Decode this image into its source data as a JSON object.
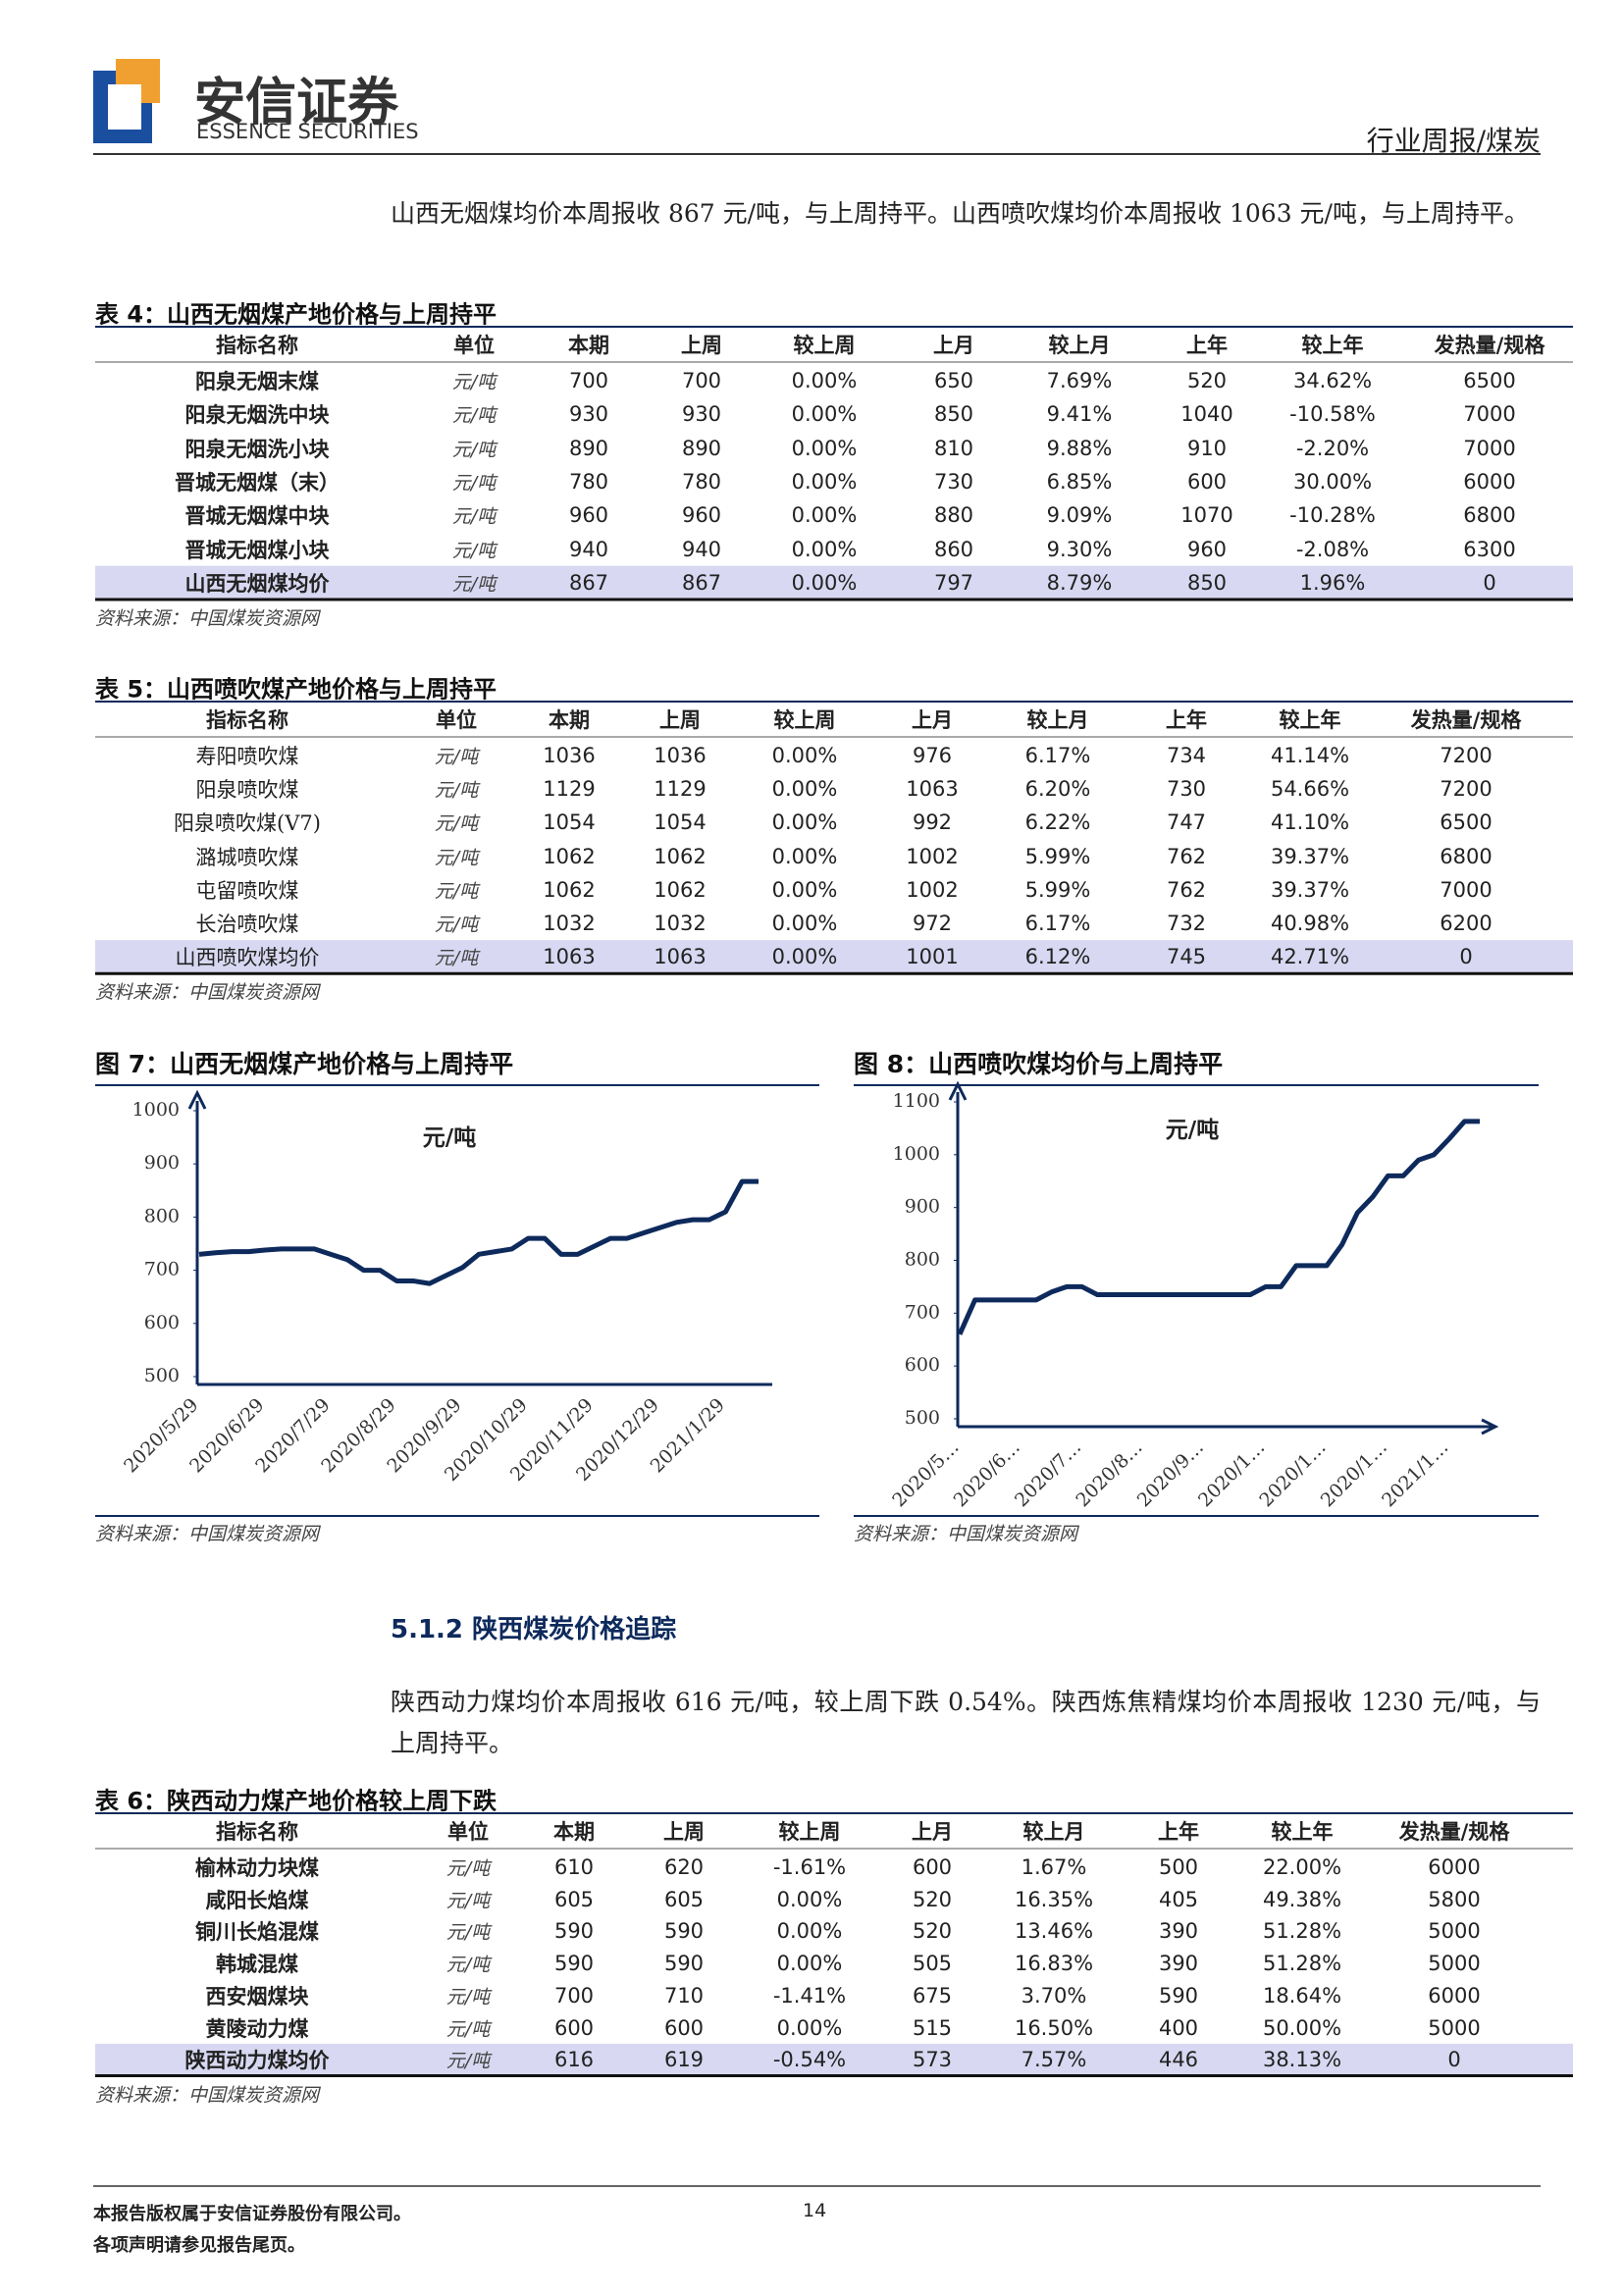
{
  "header": {
    "company": "安信证券",
    "company_en": "ESSENCE SECURITIES",
    "report_type": "行业周报/煤炭"
  },
  "paragraphs": [
    "山西无烟煤均价本周报收 867 元/吨，与上周持平。山西喷吹煤均价本周报收 1063 元/吨，与上周持平。",
    "陕西动力煤均价本周报收 616 元/吨，较上周下跌 0.54%。陕西炼焦精煤均价本周报收 1230 元/吨，与上周持平。"
  ],
  "section_heading": "5.1.2 陕西煤炭价格追踪",
  "tables": [
    {
      "title": "表 4：山西无烟煤产地价格与上周持平",
      "columns": [
        "指标名称",
        "单位",
        "本期",
        "上周",
        "较上周",
        "上月",
        "较上月",
        "上年",
        "较上年",
        "发热量/规格"
      ],
      "rows": [
        [
          "阳泉无烟末煤",
          "元/吨",
          "700",
          "700",
          "0.00%",
          "650",
          "7.69%",
          "520",
          "34.62%",
          "6500"
        ],
        [
          "阳泉无烟洗中块",
          "元/吨",
          "930",
          "930",
          "0.00%",
          "850",
          "9.41%",
          "1040",
          "-10.58%",
          "7000"
        ],
        [
          "阳泉无烟洗小块",
          "元/吨",
          "890",
          "890",
          "0.00%",
          "810",
          "9.88%",
          "910",
          "-2.20%",
          "7000"
        ],
        [
          "晋城无烟煤（末）",
          "元/吨",
          "780",
          "780",
          "0.00%",
          "730",
          "6.85%",
          "600",
          "30.00%",
          "6000"
        ],
        [
          "晋城无烟煤中块",
          "元/吨",
          "960",
          "960",
          "0.00%",
          "880",
          "9.09%",
          "1070",
          "-10.28%",
          "6800"
        ],
        [
          "晋城无烟煤小块",
          "元/吨",
          "940",
          "940",
          "0.00%",
          "860",
          "9.30%",
          "960",
          "-2.08%",
          "6300"
        ],
        [
          "山西无烟煤均价",
          "元/吨",
          "867",
          "867",
          "0.00%",
          "797",
          "8.79%",
          "850",
          "1.96%",
          "0"
        ]
      ],
      "source": "资料来源：中国煤炭资源网"
    },
    {
      "title": "表 5：山西喷吹煤产地价格与上周持平",
      "columns": [
        "指标名称",
        "单位",
        "本期",
        "上周",
        "较上周",
        "上月",
        "较上月",
        "上年",
        "较上年",
        "发热量/规格"
      ],
      "rows": [
        [
          "寿阳喷吹煤",
          "元/吨",
          "1036",
          "1036",
          "0.00%",
          "976",
          "6.17%",
          "734",
          "41.14%",
          "7200"
        ],
        [
          "阳泉喷吹煤",
          "元/吨",
          "1129",
          "1129",
          "0.00%",
          "1063",
          "6.20%",
          "730",
          "54.66%",
          "7200"
        ],
        [
          "阳泉喷吹煤(V7)",
          "元/吨",
          "1054",
          "1054",
          "0.00%",
          "992",
          "6.22%",
          "747",
          "41.10%",
          "6500"
        ],
        [
          "潞城喷吹煤",
          "元/吨",
          "1062",
          "1062",
          "0.00%",
          "1002",
          "5.99%",
          "762",
          "39.37%",
          "6800"
        ],
        [
          "屯留喷吹煤",
          "元/吨",
          "1062",
          "1062",
          "0.00%",
          "1002",
          "5.99%",
          "762",
          "39.37%",
          "7000"
        ],
        [
          "长治喷吹煤",
          "元/吨",
          "1032",
          "1032",
          "0.00%",
          "972",
          "6.17%",
          "732",
          "40.98%",
          "6200"
        ],
        [
          "山西喷吹煤均价",
          "元/吨",
          "1063",
          "1063",
          "0.00%",
          "1001",
          "6.12%",
          "745",
          "42.71%",
          "0"
        ]
      ],
      "source": "资料来源：中国煤炭资源网"
    },
    {
      "title": "表 6：陕西动力煤产地价格较上周下跌",
      "columns": [
        "指标名称",
        "单位",
        "本期",
        "上周",
        "较上周",
        "上月",
        "较上月",
        "上年",
        "较上年",
        "发热量/规格"
      ],
      "rows": [
        [
          "榆林动力块煤",
          "元/吨",
          "610",
          "620",
          "-1.61%",
          "600",
          "1.67%",
          "500",
          "22.00%",
          "6000"
        ],
        [
          "咸阳长焰煤",
          "元/吨",
          "605",
          "605",
          "0.00%",
          "520",
          "16.35%",
          "405",
          "49.38%",
          "5800"
        ],
        [
          "铜川长焰混煤",
          "元/吨",
          "590",
          "590",
          "0.00%",
          "520",
          "13.46%",
          "390",
          "51.28%",
          "5000"
        ],
        [
          "韩城混煤",
          "元/吨",
          "590",
          "590",
          "0.00%",
          "505",
          "16.83%",
          "390",
          "51.28%",
          "5000"
        ],
        [
          "西安烟煤块",
          "元/吨",
          "700",
          "710",
          "-1.41%",
          "675",
          "3.70%",
          "590",
          "18.64%",
          "6000"
        ],
        [
          "黄陵动力煤",
          "元/吨",
          "600",
          "600",
          "0.00%",
          "515",
          "16.50%",
          "400",
          "50.00%",
          "5000"
        ],
        [
          "陕西动力煤均价",
          "元/吨",
          "616",
          "619",
          "-0.54%",
          "573",
          "7.57%",
          "446",
          "38.13%",
          "0"
        ]
      ],
      "source": "资料来源：中国煤炭资源网"
    }
  ],
  "charts": [
    {
      "type": "line",
      "title": "图 7：山西无烟煤产地价格与上周持平",
      "unit_label": "元/吨",
      "color": "#0e2a5c",
      "categories": [
        "2020/5/29",
        null,
        null,
        null,
        "2020/6/29",
        null,
        null,
        null,
        "2020/7/29",
        null,
        null,
        null,
        "2020/8/29",
        null,
        null,
        null,
        "2020/9/29",
        null,
        null,
        null,
        "2020/10/29",
        null,
        null,
        null,
        "2020/11/29",
        null,
        null,
        null,
        "2020/12/29",
        null,
        null,
        null,
        "2021/1/29",
        null,
        null
      ],
      "values": [
        730,
        733,
        735,
        735,
        738,
        740,
        740,
        740,
        730,
        720,
        700,
        700,
        680,
        680,
        675,
        690,
        705,
        730,
        735,
        740,
        760,
        760,
        730,
        730,
        745,
        760,
        760,
        770,
        780,
        790,
        795,
        795,
        810,
        867,
        867
      ],
      "ylim": [
        500,
        1000
      ],
      "yticks": [
        500,
        600,
        700,
        800,
        900,
        1000
      ],
      "source": "资料来源：中国煤炭资源网"
    },
    {
      "type": "line",
      "title": "图 8：山西喷吹煤均价与上周持平",
      "unit_label": "元/吨",
      "color": "#0e2a5c",
      "categories": [
        "2020/5…",
        null,
        null,
        null,
        "2020/6…",
        null,
        null,
        null,
        "2020/7…",
        null,
        null,
        null,
        "2020/8…",
        null,
        null,
        null,
        "2020/9…",
        null,
        null,
        null,
        "2020/1…",
        null,
        null,
        null,
        "2020/1…",
        null,
        null,
        null,
        "2020/1…",
        null,
        null,
        null,
        "2021/1…",
        null,
        null
      ],
      "values": [
        660,
        725,
        725,
        725,
        725,
        725,
        740,
        750,
        750,
        735,
        735,
        735,
        735,
        735,
        735,
        735,
        735,
        735,
        735,
        735,
        750,
        750,
        790,
        790,
        790,
        830,
        890,
        920,
        960,
        960,
        990,
        1000,
        1030,
        1063,
        1063
      ],
      "ylim": [
        500,
        1100
      ],
      "yticks": [
        500,
        600,
        700,
        800,
        900,
        1000,
        1100
      ],
      "source": "资料来源：中国煤炭资源网"
    }
  ],
  "footer": {
    "copyright": "本报告版权属于安信证券股份有限公司。",
    "disclaimer": "各项声明请参见报告尾页。",
    "page_number": "14"
  }
}
